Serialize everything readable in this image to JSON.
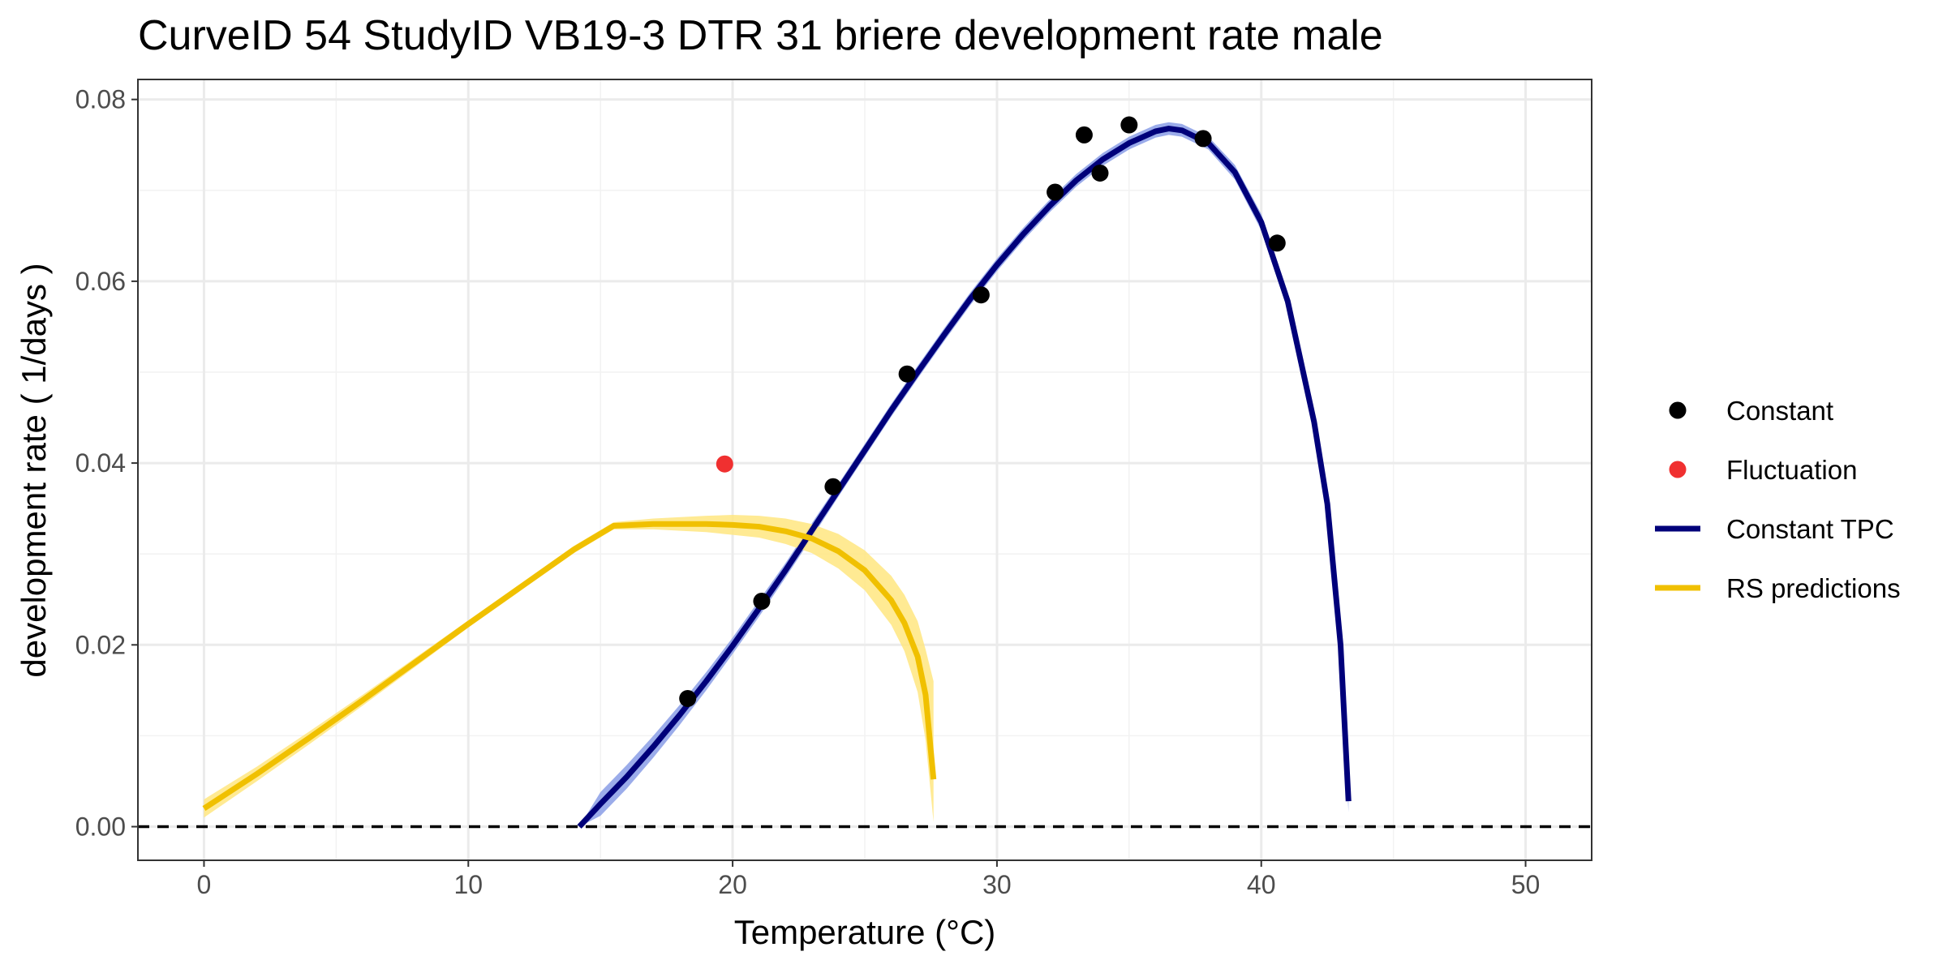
{
  "chart_data": {
    "type": "line",
    "title": "CurveID 54 StudyID VB19-3 DTR 31 briere development rate male",
    "xlabel": "Temperature (°C)",
    "ylabel": "development rate ( 1/days )",
    "xlim": [
      -2.5,
      52.5
    ],
    "ylim": [
      -0.0037,
      0.0822
    ],
    "x_ticks": [
      0,
      10,
      20,
      30,
      40,
      50
    ],
    "x_tick_labels": [
      "0",
      "10",
      "20",
      "30",
      "40",
      "50"
    ],
    "y_ticks": [
      0,
      0.02,
      0.04,
      0.06,
      0.08
    ],
    "y_tick_labels": [
      "0.00",
      "0.02",
      "0.04",
      "0.06",
      "0.08"
    ],
    "grid": true,
    "reference_line": {
      "y": 0,
      "style": "dashed",
      "color": "#000000"
    },
    "legend_position": "right",
    "series": [
      {
        "name": "Constant",
        "kind": "points",
        "color": "#000000",
        "x": [
          18.3,
          21.1,
          23.8,
          26.6,
          29.4,
          32.2,
          33.3,
          33.9,
          35.0,
          37.8,
          40.6
        ],
        "y": [
          0.0141,
          0.0248,
          0.0374,
          0.0498,
          0.0585,
          0.0698,
          0.0761,
          0.0719,
          0.0772,
          0.0757,
          0.0642
        ]
      },
      {
        "name": "Fluctuation",
        "kind": "points",
        "color": "#f03030",
        "x": [
          19.7
        ],
        "y": [
          0.0399
        ]
      },
      {
        "name": "Constant TPC",
        "kind": "line",
        "color": "#00007a",
        "band_color": "#8a9ee6",
        "x": [
          14.2,
          15,
          16,
          17,
          18,
          19,
          20,
          21,
          22,
          23,
          24,
          25,
          26,
          27,
          28,
          29,
          30,
          31,
          32,
          33,
          34,
          35,
          36,
          36.5,
          37,
          38,
          39,
          40,
          41,
          42,
          42.5,
          43,
          43.3
        ],
        "y": [
          0.0,
          0.0025,
          0.0055,
          0.0088,
          0.0123,
          0.016,
          0.0199,
          0.024,
          0.0282,
          0.0326,
          0.037,
          0.0414,
          0.0458,
          0.05,
          0.0541,
          0.0581,
          0.0618,
          0.0652,
          0.0683,
          0.0711,
          0.0734,
          0.0752,
          0.0765,
          0.0768,
          0.0766,
          0.0752,
          0.072,
          0.0665,
          0.0578,
          0.0445,
          0.0355,
          0.02,
          0.0028
        ],
        "band_upper": [
          0.0,
          0.0038,
          0.0068,
          0.01,
          0.0134,
          0.017,
          0.0208,
          0.0249,
          0.029,
          0.0334,
          0.0377,
          0.0421,
          0.0465,
          0.0507,
          0.0548,
          0.0588,
          0.0625,
          0.0659,
          0.069,
          0.0718,
          0.0741,
          0.0759,
          0.0772,
          0.0775,
          0.0773,
          0.0759,
          0.0728,
          0.0674,
          0.0588,
          0.0458,
          0.037,
          0.0225,
          0.004
        ],
        "band_lower": [
          0.0,
          0.0012,
          0.0042,
          0.0076,
          0.0112,
          0.015,
          0.019,
          0.0231,
          0.0274,
          0.0318,
          0.0363,
          0.0407,
          0.0451,
          0.0493,
          0.0534,
          0.0574,
          0.0611,
          0.0645,
          0.0676,
          0.0704,
          0.0727,
          0.0745,
          0.0758,
          0.0761,
          0.0759,
          0.0745,
          0.0712,
          0.0656,
          0.0568,
          0.0432,
          0.034,
          0.0175,
          0.0016
        ]
      },
      {
        "name": "RS predictions",
        "kind": "line",
        "color": "#f0c000",
        "band_color": "#ffe680",
        "x": [
          0,
          2,
          4,
          6,
          8,
          10,
          12,
          14,
          15.5,
          17,
          19,
          20,
          21,
          22,
          23,
          24,
          25,
          26,
          26.5,
          27,
          27.3,
          27.6
        ],
        "y": [
          0.002,
          0.0058,
          0.0098,
          0.0139,
          0.0181,
          0.0223,
          0.0264,
          0.0305,
          0.0331,
          0.0333,
          0.0333,
          0.0332,
          0.033,
          0.0325,
          0.0317,
          0.0303,
          0.0282,
          0.0249,
          0.0224,
          0.0187,
          0.0145,
          0.0052
        ],
        "band_upper": [
          0.003,
          0.0066,
          0.0105,
          0.0145,
          0.0186,
          0.0227,
          0.0268,
          0.0309,
          0.0335,
          0.0339,
          0.0342,
          0.0343,
          0.0342,
          0.0339,
          0.0333,
          0.0322,
          0.0304,
          0.0276,
          0.0255,
          0.0226,
          0.0195,
          0.016
        ],
        "band_lower": [
          0.001,
          0.005,
          0.0091,
          0.0133,
          0.0176,
          0.0219,
          0.026,
          0.0301,
          0.0327,
          0.0327,
          0.0324,
          0.0321,
          0.0318,
          0.0311,
          0.0301,
          0.0284,
          0.026,
          0.0222,
          0.0193,
          0.0148,
          0.0095,
          0.0005
        ]
      }
    ]
  }
}
